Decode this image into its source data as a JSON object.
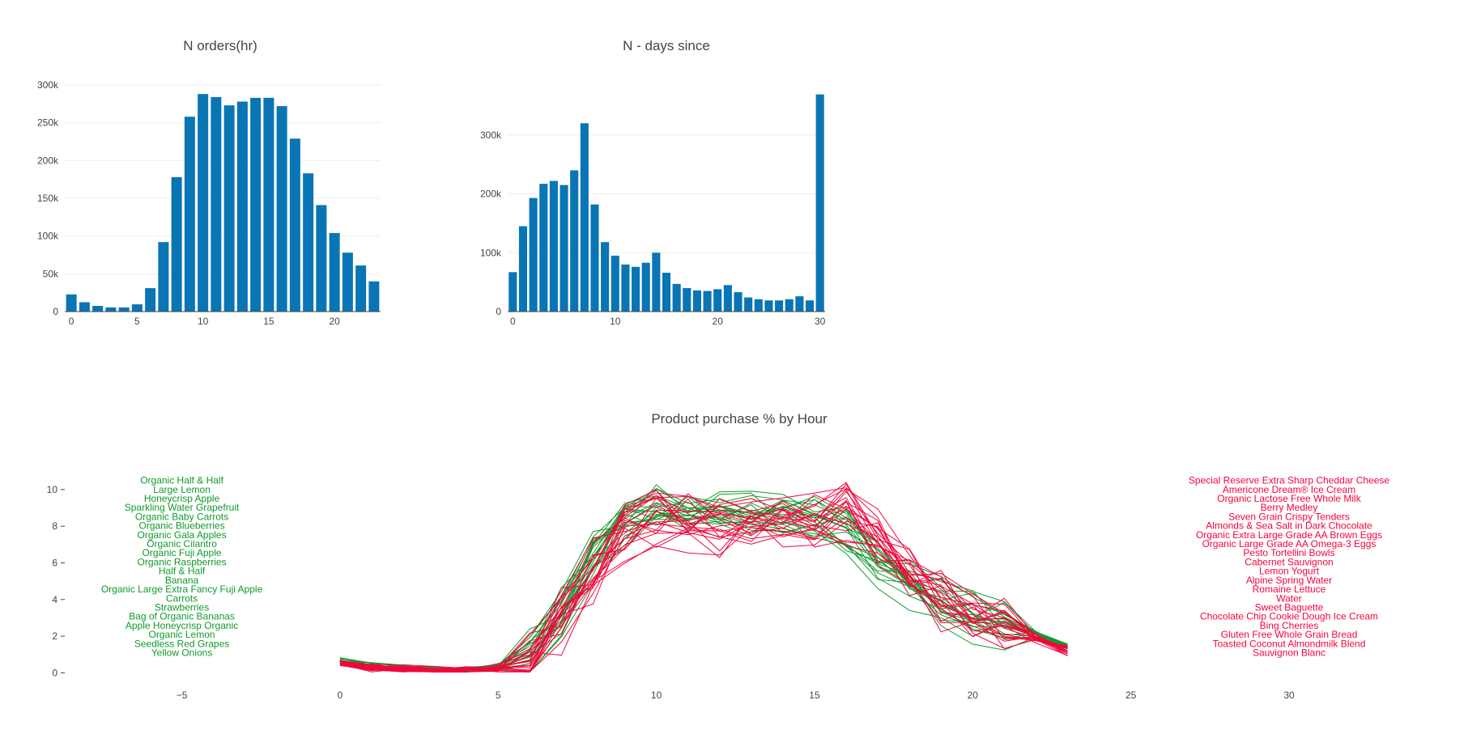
{
  "colors": {
    "bar": "#0a75b4",
    "grid": "#eeeeee",
    "axis": "#444444",
    "green": "#109a2c",
    "red": "#f4043c"
  },
  "chart_data": [
    {
      "type": "bar",
      "title": "N orders(hr)",
      "xlabel": "",
      "ylabel": "",
      "categories": [
        0,
        1,
        2,
        3,
        4,
        5,
        6,
        7,
        8,
        9,
        10,
        11,
        12,
        13,
        14,
        15,
        16,
        17,
        18,
        19,
        20,
        21,
        22,
        23
      ],
      "values": [
        22800,
        12400,
        7500,
        5500,
        5500,
        9600,
        31000,
        92000,
        178000,
        258000,
        288000,
        284000,
        273000,
        278000,
        283000,
        283000,
        272000,
        229000,
        183000,
        141000,
        104000,
        78000,
        61000,
        40000
      ],
      "xlim": [
        -0.5,
        23.5
      ],
      "ylim": [
        0,
        300000
      ],
      "x_ticks": [
        0,
        5,
        10,
        15,
        20
      ],
      "x_tick_labels": [
        "0",
        "5",
        "10",
        "15",
        "20"
      ],
      "y_ticks": [
        0,
        50000,
        100000,
        150000,
        200000,
        250000,
        300000
      ],
      "y_tick_labels": [
        "0",
        "50k",
        "100k",
        "150k",
        "200k",
        "250k",
        "300k"
      ],
      "grid": true
    },
    {
      "type": "bar",
      "title": "N - days since",
      "xlabel": "",
      "ylabel": "",
      "categories": [
        0,
        1,
        2,
        3,
        4,
        5,
        6,
        7,
        8,
        9,
        10,
        11,
        12,
        13,
        14,
        15,
        16,
        17,
        18,
        19,
        20,
        21,
        22,
        23,
        24,
        25,
        26,
        27,
        28,
        29,
        30
      ],
      "values": [
        67000,
        145000,
        193000,
        217000,
        222000,
        215000,
        240000,
        320000,
        182000,
        118000,
        95000,
        80000,
        76000,
        83000,
        100000,
        66000,
        47000,
        40000,
        36000,
        35000,
        38000,
        45000,
        33000,
        24000,
        21000,
        19000,
        19000,
        21000,
        26000,
        19000,
        369000
      ],
      "xlim": [
        -0.5,
        30.5
      ],
      "ylim": [
        0,
        385000
      ],
      "x_ticks": [
        0,
        10,
        20,
        30
      ],
      "x_tick_labels": [
        "0",
        "10",
        "20",
        "30"
      ],
      "y_ticks": [
        0,
        100000,
        200000,
        300000
      ],
      "y_tick_labels": [
        "0",
        "100k",
        "200k",
        "300k"
      ],
      "grid": true
    },
    {
      "type": "line",
      "title": "Product purchase % by Hour",
      "xlabel": "",
      "ylabel": "",
      "xlim": [
        -8.7,
        34.3
      ],
      "ylim": [
        -0.6,
        11.1
      ],
      "x_ticks": [
        -5,
        0,
        5,
        10,
        15,
        20,
        25,
        30
      ],
      "x_tick_labels": [
        "−5",
        "0",
        "5",
        "10",
        "15",
        "20",
        "25",
        "30"
      ],
      "y_ticks": [
        0,
        2,
        4,
        6,
        8,
        10
      ],
      "y_tick_labels": [
        "0",
        "2",
        "4",
        "6",
        "8",
        "10"
      ],
      "grid": false,
      "x": [
        0,
        1,
        2,
        3,
        4,
        5,
        6,
        7,
        8,
        9,
        10,
        11,
        12,
        13,
        14,
        15,
        16,
        17,
        18,
        19,
        20,
        21,
        22,
        23
      ],
      "green_base": [
        0.6,
        0.35,
        0.2,
        0.15,
        0.15,
        0.3,
        1.1,
        3.3,
        6.2,
        8.2,
        8.7,
        8.6,
        8.4,
        8.4,
        8.3,
        8.2,
        7.5,
        6.0,
        4.7,
        3.8,
        3.1,
        2.6,
        2.1,
        1.4
      ],
      "red_base": [
        0.55,
        0.3,
        0.2,
        0.12,
        0.12,
        0.25,
        0.9,
        2.9,
        5.6,
        7.4,
        8.3,
        8.1,
        7.9,
        8.1,
        8.2,
        8.4,
        8.6,
        7.4,
        5.4,
        4.1,
        3.3,
        2.5,
        1.9,
        1.2
      ],
      "green_labels": [
        "Organic Half & Half",
        "Large Lemon",
        "Honeycrisp Apple",
        "Sparkling Water Grapefruit",
        "Organic Baby Carrots",
        "Organic Blueberries",
        "Organic Gala Apples",
        "Organic Cilantro",
        "Organic Fuji Apple",
        "Organic Raspberries",
        "Half & Half",
        "Banana",
        "Organic Large Extra Fancy Fuji Apple",
        "Carrots",
        "Strawberries",
        "Bag of Organic Bananas",
        "Apple Honeycrisp Organic",
        "Organic Lemon",
        "Seedless Red Grapes",
        "Yellow Onions"
      ],
      "red_labels": [
        "Special Reserve Extra Sharp Cheddar Cheese",
        "Americone Dream® Ice Cream",
        "Organic Lactose Free Whole Milk",
        "Berry Medley",
        "Seven Grain Crispy Tenders",
        "Almonds & Sea Salt in Dark Chocolate",
        "Organic Extra Large Grade AA Brown Eggs",
        "Organic Large Grade AA Omega-3 Eggs",
        "Pesto Tortellini  Bowls",
        "Cabernet Sauvignon",
        "Lemon Yogurt",
        "Alpine Spring Water",
        "Romaine Lettuce",
        "Water",
        "Sweet Baguette",
        "Chocolate Chip Cookie Dough Ice Cream",
        "Bing Cherries",
        "Gluten Free Whole Grain Bread",
        "Toasted Coconut Almondmilk Blend",
        "Sauvignon Blanc"
      ],
      "green_label_x": -5,
      "red_label_x": 30,
      "label_top_y": 10.5,
      "label_bottom_y": 1.1
    }
  ]
}
